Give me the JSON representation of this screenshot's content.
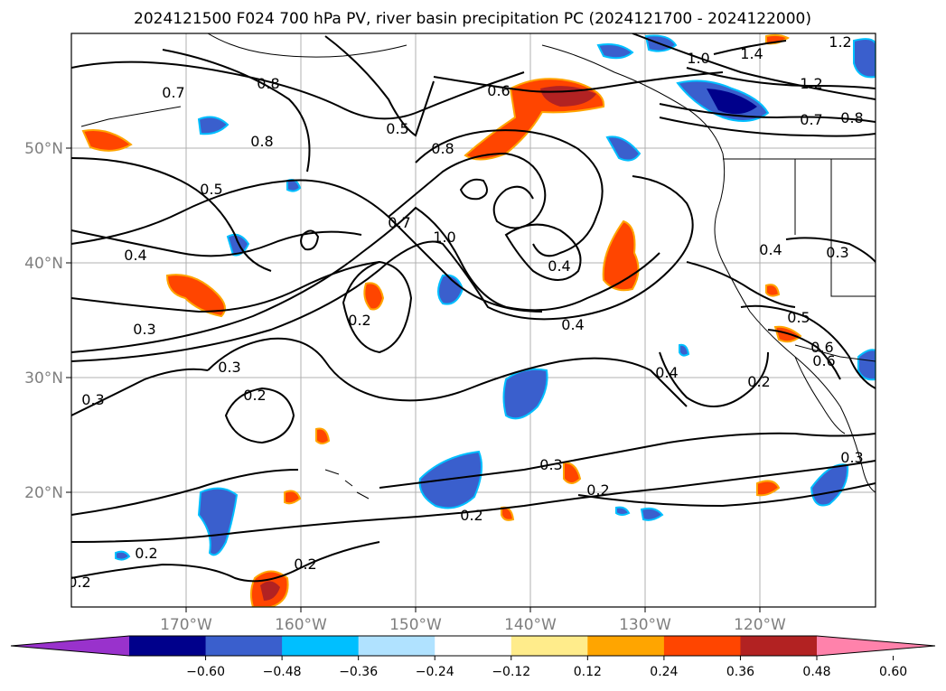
{
  "title": "2024121500 F024 700 hPa PV, river basin precipitation PC (2024121700 - 2024122000)",
  "map": {
    "lon_range": [
      -180,
      -110
    ],
    "lat_range": [
      10,
      60
    ],
    "lon_ticks": [
      "170°W",
      "160°W",
      "150°W",
      "140°W",
      "130°W",
      "120°W"
    ],
    "lat_ticks": [
      "50°N",
      "40°N",
      "30°N",
      "20°N"
    ],
    "grid": true
  },
  "colorbar": {
    "ticks": [
      "−0.60",
      "−0.48",
      "−0.36",
      "−0.24",
      "−0.12",
      "0.12",
      "0.24",
      "0.36",
      "0.48",
      "0.60"
    ],
    "colors": [
      "#9932cc",
      "#00008b",
      "#3a5fcd",
      "#00bfff",
      "#b0e2ff",
      "#ffffff",
      "#ffec8b",
      "#ffa500",
      "#ff4500",
      "#b22222",
      "#ff82ab"
    ],
    "extend": "both"
  },
  "contour_labels": [
    "0.7",
    "0.8",
    "0.8",
    "0.5",
    "0.6",
    "1.0",
    "1.4",
    "1.2",
    "1.2",
    "0.7",
    "0.8",
    "0.5",
    "0.8",
    "1.0",
    "0.7",
    "0.4",
    "0.4",
    "0.2",
    "0.4",
    "0.4",
    "0.3",
    "0.5",
    "0.6",
    "0.3",
    "0.2",
    "0.3",
    "0.2",
    "0.4",
    "0.2",
    "0.3",
    "0.3",
    "0.2",
    "0.2",
    "0.2",
    "0.2",
    "0.3",
    "0.6"
  ],
  "precip_areas": [
    {
      "type": "neg",
      "level": 0.48
    },
    {
      "type": "neg",
      "level": 0.36
    }
  ]
}
